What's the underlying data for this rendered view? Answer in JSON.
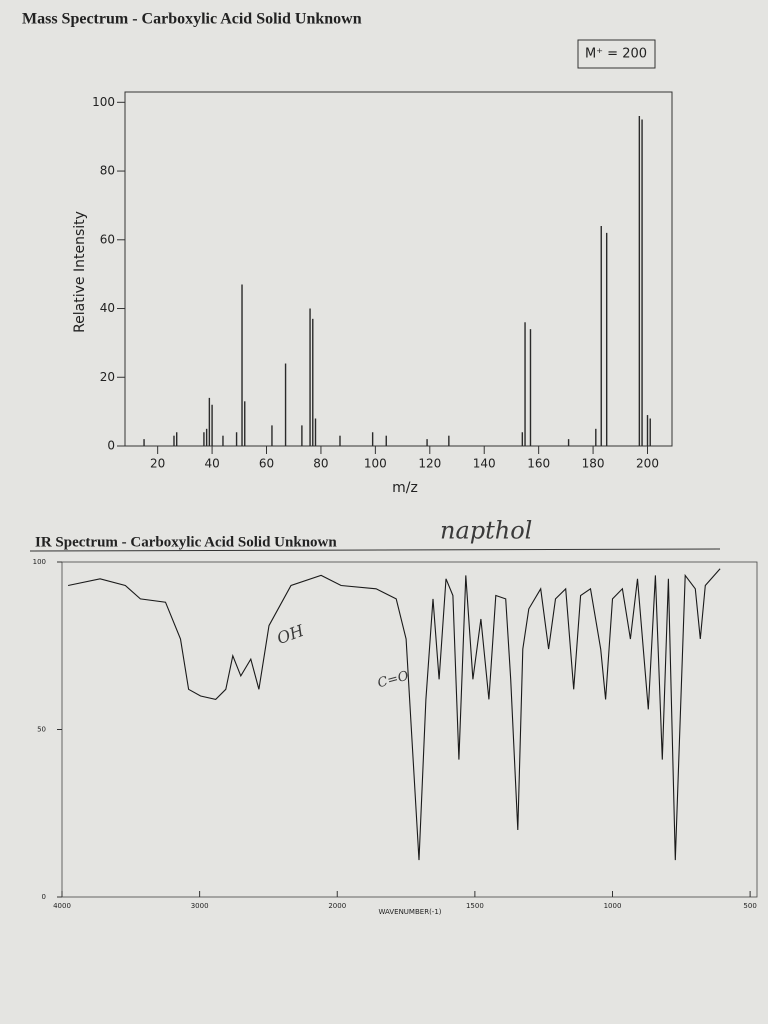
{
  "chart_data": [
    {
      "type": "bar",
      "title": "Mass Spectrum - Carboxylic Acid Solid Unknown",
      "note": "M⁺ = 200",
      "x_label": "m/z",
      "y_label": "Relative Intensity",
      "x": [
        15,
        26,
        27,
        37,
        38,
        39,
        40,
        44,
        49,
        51,
        52,
        62,
        67,
        73,
        76,
        77,
        78,
        87,
        99,
        104,
        119,
        127,
        154,
        155,
        157,
        171,
        181,
        183,
        185,
        197,
        198,
        200,
        201
      ],
      "values": [
        2,
        3,
        4,
        4,
        5,
        14,
        12,
        3,
        4,
        47,
        13,
        6,
        24,
        6,
        40,
        37,
        8,
        3,
        4,
        3,
        2,
        3,
        4,
        36,
        34,
        2,
        5,
        64,
        62,
        96,
        95,
        9,
        8
      ],
      "color": "#2a2a2a",
      "xlim": [
        8,
        209
      ],
      "ylim": [
        0,
        103
      ],
      "xticks": [
        20,
        40,
        60,
        80,
        100,
        120,
        140,
        160,
        180,
        200
      ],
      "yticks": [
        0,
        20,
        40,
        60,
        80,
        100
      ]
    },
    {
      "type": "line",
      "title": "IR Spectrum - Carboxylic Acid Solid Unknown",
      "x_label": "WAVENUMBER(-1)",
      "x": [
        3956,
        3723,
        3540,
        3430,
        3248,
        3139,
        3080,
        2993,
        2883,
        2810,
        2759,
        2701,
        2628,
        2569,
        2496,
        2336,
        2117,
        1986,
        1859,
        1786,
        1750,
        1703,
        1678,
        1652,
        1630,
        1605,
        1580,
        1558,
        1533,
        1507,
        1478,
        1449,
        1424,
        1388,
        1370,
        1344,
        1326,
        1304,
        1261,
        1232,
        1207,
        1170,
        1141,
        1116,
        1080,
        1043,
        1025,
        1000,
        964,
        935,
        909,
        870,
        844,
        819,
        797,
        772,
        736,
        699,
        681,
        663,
        609
      ],
      "values": [
        93,
        95,
        93,
        89,
        88,
        77,
        62,
        60,
        59,
        62,
        72,
        66,
        71,
        62,
        81,
        93,
        96,
        93,
        92,
        89,
        77,
        11,
        59,
        89,
        65,
        95,
        90,
        41,
        96,
        65,
        83,
        59,
        90,
        89,
        65,
        20,
        74,
        86,
        92,
        74,
        89,
        92,
        62,
        90,
        92,
        74,
        59,
        89,
        92,
        77,
        95,
        56,
        96,
        41,
        95,
        11,
        96,
        92,
        77,
        93,
        98
      ],
      "color": "#1a1a1a",
      "xlim": [
        4000,
        475
      ],
      "ylim": [
        0,
        100
      ],
      "xscale_break": 2000,
      "xticks": [
        4000,
        3000,
        2000,
        1500,
        1000,
        500
      ],
      "yticks": [
        0,
        50,
        100
      ],
      "annotations": [
        "napthol",
        "OH",
        "C=O"
      ]
    }
  ]
}
